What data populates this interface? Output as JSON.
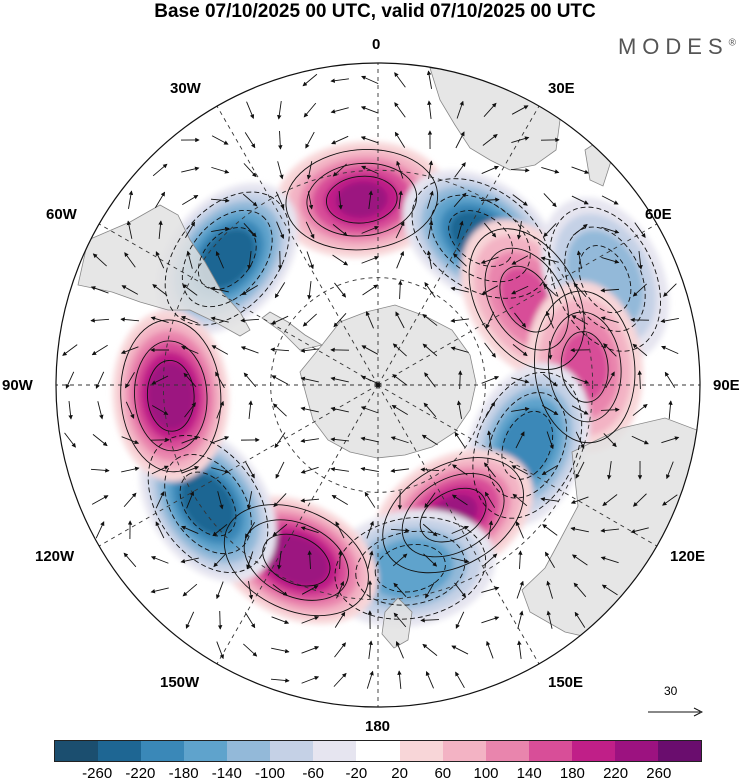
{
  "title": "Base 07/10/2025 00 UTC, valid 07/10/2025 00 UTC",
  "brand": {
    "name": "MODES",
    "mark": "®"
  },
  "meridian_labels": {
    "deg0": "0",
    "deg30e": "30E",
    "deg60e": "60E",
    "deg90e": "90E",
    "deg120e": "120E",
    "deg150e": "150E",
    "deg180": "180",
    "deg150w": "150W",
    "deg120w": "120W",
    "deg90w": "90W",
    "deg60w": "60W",
    "deg30w": "30W"
  },
  "colorbar": {
    "colors": [
      "#1b4e6f",
      "#1e6693",
      "#3a88b8",
      "#5fa3cc",
      "#93b9d9",
      "#c5d1e6",
      "#e6e5f0",
      "#ffffff",
      "#f8d6d8",
      "#f3b3c4",
      "#e985ad",
      "#d84e98",
      "#c01f88",
      "#9c1280",
      "#6a0d6e"
    ],
    "ticks": [
      "-260",
      "-220",
      "-180",
      "-140",
      "-100",
      "-60",
      "-20",
      "20",
      "60",
      "100",
      "140",
      "180",
      "220",
      "260"
    ]
  },
  "vector_scale_label": "30",
  "anomaly_centers": [
    {
      "name": "south-atlantic-high",
      "lon": -5,
      "colat": 52,
      "value": 230
    },
    {
      "name": "southwest-indian-low",
      "lon": 35,
      "colat": 50,
      "value": -240
    },
    {
      "name": "southeast-atlantic-low",
      "lon": -50,
      "colat": 55,
      "value": -250
    },
    {
      "name": "indian-ocean-high",
      "lon": 60,
      "colat": 48,
      "value": 150
    },
    {
      "name": "indian-ocean-low",
      "lon": 65,
      "colat": 70,
      "value": -130
    },
    {
      "name": "south-indian-ridge",
      "lon": 85,
      "colat": 58,
      "value": 140
    },
    {
      "name": "south-indian-trough",
      "lon": 112,
      "colat": 45,
      "value": -220
    },
    {
      "name": "tasman-high",
      "lon": 150,
      "colat": 42,
      "value": 230
    },
    {
      "name": "pacific-low",
      "lon": 170,
      "colat": 52,
      "value": -180
    },
    {
      "name": "south-pacific-high",
      "lon": -155,
      "colat": 54,
      "value": 250
    },
    {
      "name": "southeast-pacific-low",
      "lon": -125,
      "colat": 58,
      "value": -240
    },
    {
      "name": "amundsen-high",
      "lon": -93,
      "colat": 58,
      "value": 250
    }
  ]
}
